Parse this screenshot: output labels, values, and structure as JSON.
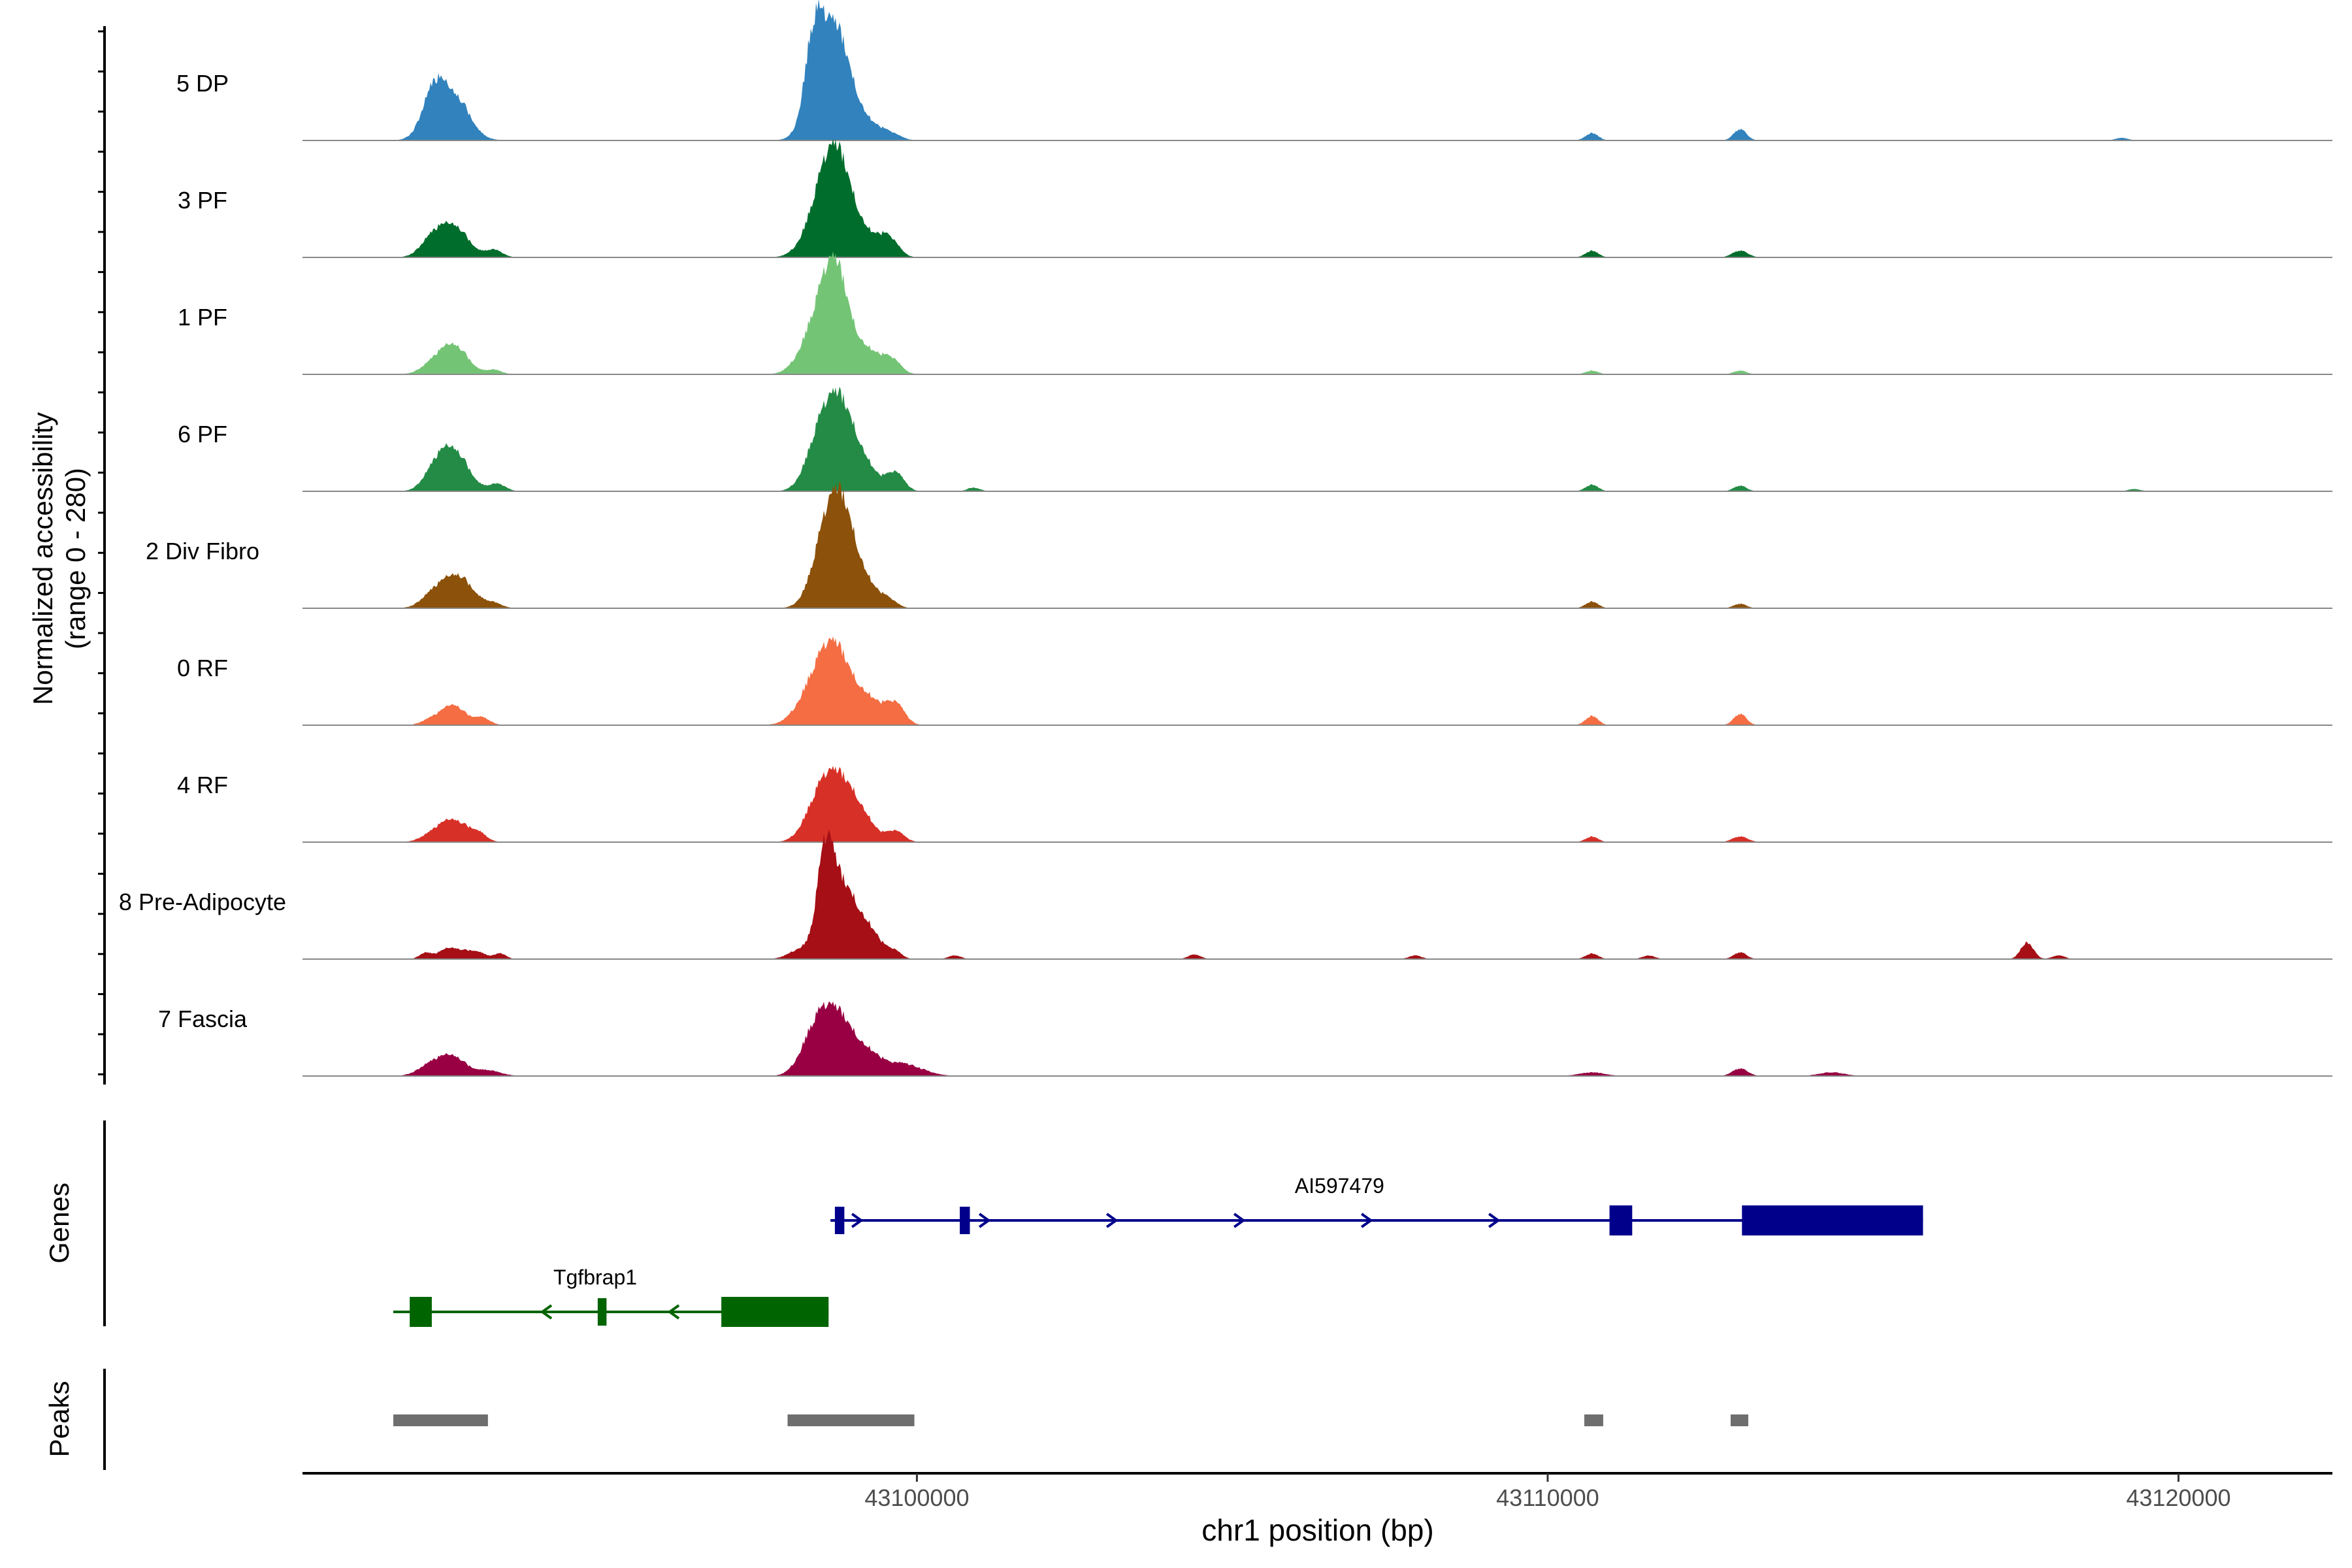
{
  "chart_data": {
    "type": "area",
    "title": "",
    "xlabel": "chr1 position (bp)",
    "ylabel_line1": "Normalized accessibility",
    "ylabel_line2": "(range 0 - 280)",
    "ylim": [
      0,
      280
    ],
    "xlim": [
      43090260,
      43122440
    ],
    "x_ticks": [
      43100000,
      43110000,
      43120000
    ],
    "x_tick_labels": [
      "43100000",
      "43110000",
      "43120000"
    ],
    "tracks": [
      {
        "name": "5 DP",
        "color": "#3182bd",
        "peaks": [
          [
            43092350,
            110,
            180
          ],
          [
            43092600,
            70,
            280
          ],
          [
            43092750,
            45,
            180
          ],
          [
            43098350,
            150,
            130
          ],
          [
            43098550,
            200,
            240
          ],
          [
            43098780,
            150,
            230
          ],
          [
            43099150,
            40,
            220
          ],
          [
            43099550,
            20,
            170
          ],
          [
            43110700,
            20,
            100
          ],
          [
            43113050,
            30,
            100
          ],
          [
            43119100,
            7,
            100
          ]
        ]
      },
      {
        "name": "3 PF",
        "color": "#006d2c",
        "peaks": [
          [
            43092300,
            40,
            180
          ],
          [
            43092650,
            85,
            230
          ],
          [
            43093300,
            20,
            130
          ],
          [
            43098450,
            100,
            240
          ],
          [
            43098700,
            210,
            220
          ],
          [
            43099050,
            80,
            260
          ],
          [
            43099550,
            50,
            150
          ],
          [
            43110700,
            18,
            100
          ],
          [
            43113050,
            18,
            120
          ]
        ]
      },
      {
        "name": "1 PF",
        "color": "#74c476",
        "peaks": [
          [
            43092300,
            20,
            180
          ],
          [
            43092650,
            80,
            220
          ],
          [
            43093300,
            12,
            120
          ],
          [
            43098400,
            120,
            240
          ],
          [
            43098700,
            240,
            200
          ],
          [
            43099150,
            70,
            250
          ],
          [
            43099600,
            35,
            140
          ],
          [
            43110700,
            10,
            100
          ],
          [
            43113050,
            10,
            100
          ]
        ]
      },
      {
        "name": "6 PF",
        "color": "#238b45",
        "peaks": [
          [
            43092350,
            40,
            180
          ],
          [
            43092650,
            110,
            230
          ],
          [
            43093350,
            20,
            130
          ],
          [
            43098400,
            90,
            200
          ],
          [
            43098700,
            200,
            220
          ],
          [
            43099050,
            100,
            240
          ],
          [
            43099650,
            50,
            140
          ],
          [
            43100900,
            10,
            100
          ],
          [
            43110700,
            18,
            100
          ],
          [
            43113050,
            15,
            100
          ],
          [
            43119300,
            6,
            100
          ]
        ]
      },
      {
        "name": "2 Div Fibro",
        "color": "#8c510a",
        "peaks": [
          [
            43092300,
            25,
            180
          ],
          [
            43092700,
            90,
            250
          ],
          [
            43093300,
            12,
            130
          ],
          [
            43098550,
            150,
            220
          ],
          [
            43098800,
            210,
            220
          ],
          [
            43099150,
            60,
            220
          ],
          [
            43099550,
            20,
            130
          ],
          [
            43110700,
            18,
            100
          ],
          [
            43113050,
            12,
            100
          ]
        ]
      },
      {
        "name": "0 RF",
        "color": "#f46d43",
        "peaks": [
          [
            43092300,
            15,
            150
          ],
          [
            43092650,
            55,
            180
          ],
          [
            43093100,
            20,
            130
          ],
          [
            43098400,
            110,
            260
          ],
          [
            43098700,
            150,
            220
          ],
          [
            43099150,
            80,
            250
          ],
          [
            43099650,
            55,
            150
          ],
          [
            43110700,
            25,
            100
          ],
          [
            43113050,
            30,
            100
          ]
        ]
      },
      {
        "name": "4 RF",
        "color": "#d73027",
        "peaks": [
          [
            43092300,
            15,
            180
          ],
          [
            43092650,
            60,
            220
          ],
          [
            43093050,
            20,
            130
          ],
          [
            43098350,
            50,
            200
          ],
          [
            43098650,
            160,
            230
          ],
          [
            43099050,
            90,
            220
          ],
          [
            43099650,
            30,
            140
          ],
          [
            43110700,
            15,
            100
          ],
          [
            43113050,
            15,
            120
          ]
        ]
      },
      {
        "name": "8 Pre-Adipocyte",
        "color": "#a50f15",
        "peaks": [
          [
            43092200,
            15,
            90
          ],
          [
            43092600,
            30,
            180
          ],
          [
            43093000,
            20,
            160
          ],
          [
            43093400,
            15,
            90
          ],
          [
            43098200,
            30,
            200
          ],
          [
            43098550,
            250,
            130
          ],
          [
            43098800,
            150,
            200
          ],
          [
            43099150,
            90,
            250
          ],
          [
            43099650,
            15,
            100
          ],
          [
            43100600,
            10,
            100
          ],
          [
            43104400,
            12,
            100
          ],
          [
            43107900,
            10,
            100
          ],
          [
            43110700,
            15,
            100
          ],
          [
            43111600,
            10,
            100
          ],
          [
            43113050,
            18,
            100
          ],
          [
            43117600,
            45,
            100
          ],
          [
            43118100,
            10,
            100
          ]
        ]
      },
      {
        "name": "7 Fascia",
        "color": "#980043",
        "peaks": [
          [
            43092300,
            30,
            200
          ],
          [
            43092650,
            50,
            200
          ],
          [
            43093200,
            15,
            200
          ],
          [
            43098300,
            50,
            200
          ],
          [
            43098600,
            150,
            250
          ],
          [
            43099050,
            80,
            300
          ],
          [
            43099800,
            30,
            300
          ],
          [
            43110700,
            10,
            200
          ],
          [
            43113050,
            20,
            120
          ],
          [
            43114500,
            10,
            200
          ]
        ]
      }
    ],
    "gene_track_label": "Genes",
    "genes": [
      {
        "name": "AI597479",
        "strand": "+",
        "color": "#00008b",
        "start": 43098630,
        "end": 43115950,
        "label_x": 43106700,
        "exons": [
          [
            43098700,
            43098850,
            "small"
          ],
          [
            43100680,
            43100840,
            "small"
          ],
          [
            43110980,
            43111340,
            "big"
          ],
          [
            43113080,
            43115950,
            "big"
          ]
        ]
      },
      {
        "name": "Tgfbrap1",
        "strand": "-",
        "color": "#006400",
        "start": 43091700,
        "end": 43098600,
        "label_x": 43094900,
        "exons": [
          [
            43091960,
            43092310,
            "big"
          ],
          [
            43094940,
            43095080,
            "small"
          ],
          [
            43096900,
            43098600,
            "big"
          ]
        ]
      }
    ],
    "peak_track_label": "Peaks",
    "peak_regions": [
      [
        43091700,
        43093200
      ],
      [
        43097950,
        43099960
      ],
      [
        43110580,
        43110880
      ],
      [
        43112900,
        43113180
      ]
    ]
  }
}
